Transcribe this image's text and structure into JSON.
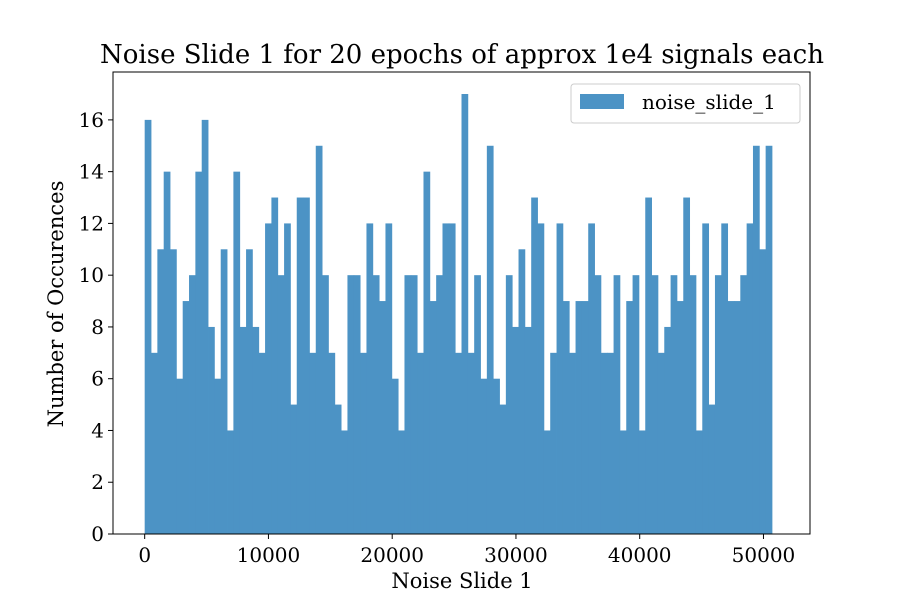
{
  "chart_data": {
    "type": "bar",
    "title": "Noise Slide 1 for 20 epochs of approx 1e4 signals each",
    "xlabel": "Noise Slide 1",
    "ylabel": "Number of Occurences",
    "xlim": [
      -2560,
      53760
    ],
    "ylim": [
      0,
      17.85
    ],
    "x_ticks": [
      0,
      10000,
      20000,
      30000,
      40000,
      50000
    ],
    "x_tick_labels": [
      "0",
      "10000",
      "20000",
      "30000",
      "40000",
      "50000"
    ],
    "y_ticks": [
      0,
      2,
      4,
      6,
      8,
      10,
      12,
      14,
      16
    ],
    "y_tick_labels": [
      "0",
      "2",
      "4",
      "6",
      "8",
      "10",
      "12",
      "14",
      "16"
    ],
    "bin_start": 0,
    "bin_width": 512,
    "grid": false,
    "legend_position": "top-right",
    "series": [
      {
        "name": "noise_slide_1",
        "color": "#4C93C5",
        "values": [
          16,
          7,
          11,
          14,
          11,
          6,
          9,
          10,
          14,
          16,
          8,
          6,
          11,
          4,
          14,
          8,
          11,
          8,
          7,
          12,
          13,
          10,
          12,
          5,
          13,
          13,
          7,
          15,
          10,
          7,
          5,
          4,
          10,
          10,
          7,
          12,
          10,
          9,
          12,
          6,
          4,
          10,
          10,
          7,
          14,
          9,
          10,
          12,
          12,
          7,
          17,
          7,
          10,
          6,
          15,
          6,
          5,
          10,
          8,
          11,
          8,
          13,
          12,
          4,
          7,
          12,
          9,
          7,
          9,
          9,
          12,
          10,
          7,
          7,
          10,
          4,
          9,
          10,
          4,
          13,
          10,
          7,
          8,
          10,
          9,
          13,
          10,
          4,
          12,
          5,
          10,
          12,
          9,
          9,
          10,
          12,
          15,
          11,
          15
        ]
      }
    ]
  }
}
